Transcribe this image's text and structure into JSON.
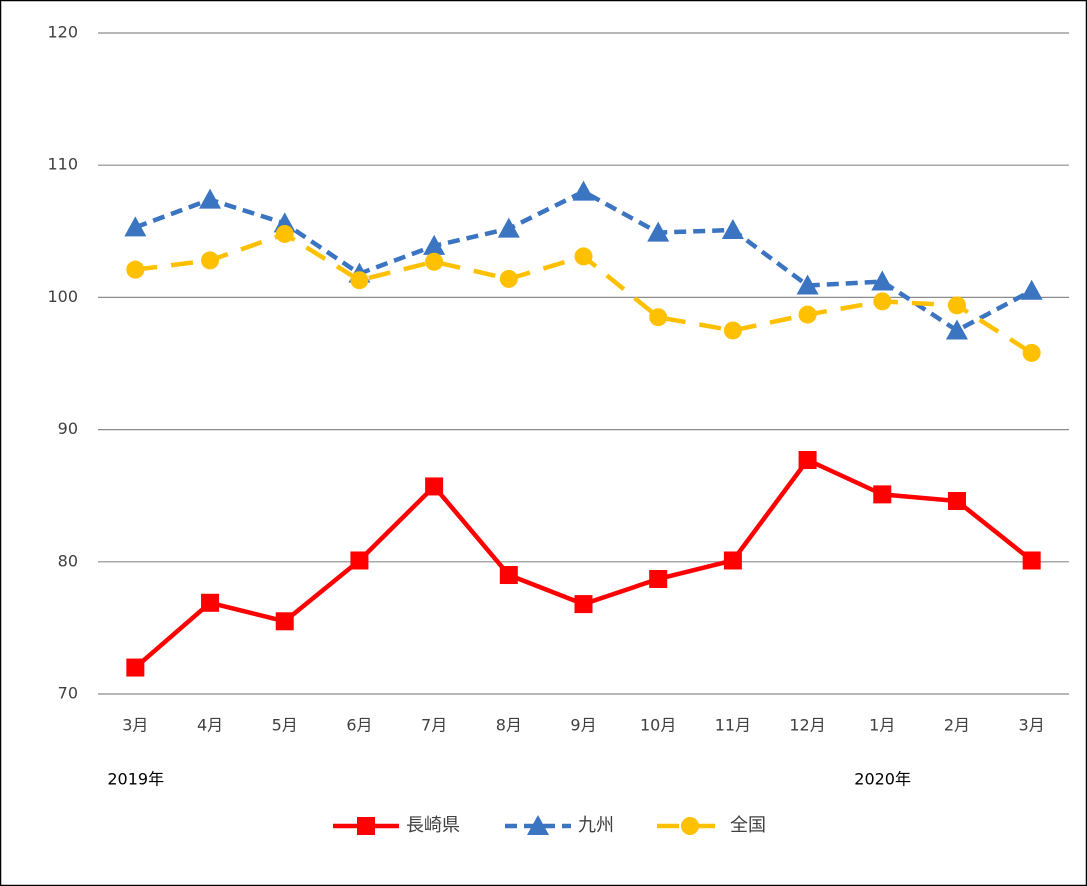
{
  "chart_data": {
    "type": "line",
    "categories": [
      "3月",
      "4月",
      "5月",
      "6月",
      "7月",
      "8月",
      "9月",
      "10月",
      "11月",
      "12月",
      "1月",
      "2月",
      "3月"
    ],
    "annotations": [
      "2019年",
      "2020年"
    ],
    "series": [
      {
        "name": "長崎県",
        "color": "#ff0000",
        "dash": "solid",
        "marker": "square",
        "values": [
          72.0,
          76.9,
          75.5,
          80.1,
          85.7,
          79.0,
          76.8,
          78.7,
          80.1,
          87.7,
          85.1,
          84.6,
          80.1
        ]
      },
      {
        "name": "九州",
        "color": "#3b74c1",
        "dash": "dashed",
        "marker": "triangle",
        "values": [
          105.3,
          107.4,
          105.6,
          101.8,
          103.9,
          105.2,
          108.0,
          104.9,
          105.1,
          100.9,
          101.2,
          97.5,
          100.5
        ]
      },
      {
        "name": "全国",
        "color": "#ffc000",
        "dash": "longdash",
        "marker": "circle",
        "values": [
          102.1,
          102.8,
          104.8,
          101.3,
          102.7,
          101.4,
          103.1,
          98.5,
          97.5,
          98.7,
          99.7,
          99.4,
          95.8
        ]
      }
    ],
    "ylim": [
      70,
      120
    ],
    "yticks": [
      70,
      80,
      90,
      100,
      110,
      120
    ],
    "grid": true,
    "legend": "bottom"
  }
}
